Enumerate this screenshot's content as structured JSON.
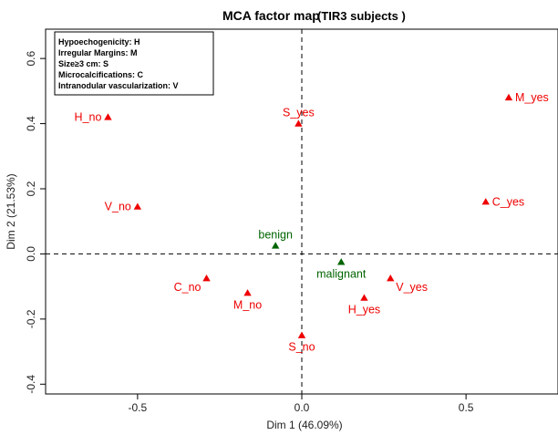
{
  "chart_data": {
    "type": "scatter",
    "title": "MCA factor map",
    "subtitle": "(TIR3 subjects )",
    "xlabel": "Dim 1 (46.09%)",
    "ylabel": "Dim 2 (21.53%)",
    "xlim": [
      -0.78,
      0.78
    ],
    "ylim": [
      -0.43,
      0.69
    ],
    "xticks": [
      -0.5,
      0.0,
      0.5
    ],
    "xtick_labels": [
      "-0.5",
      "0.0",
      "0.5"
    ],
    "yticks": [
      -0.4,
      -0.2,
      0.0,
      0.2,
      0.4,
      0.6
    ],
    "ytick_labels": [
      "-0.4",
      "-0.2",
      "0.0",
      "0.2",
      "0.4",
      "0.6"
    ],
    "grid": false,
    "reference_lines": {
      "x": 0,
      "y": 0,
      "style": "dashed"
    },
    "colors": {
      "variable": "#ee0000",
      "supplementary": "#006400"
    },
    "legend": {
      "placement": "top-left",
      "entries": [
        "Hypoechogenicity: H",
        "Irregular Margins: M",
        "Size≥3 cm: S",
        "Microcalcifications: C",
        "Intranodular vascularization: V"
      ]
    },
    "points": [
      {
        "label": "H_no",
        "x": -0.59,
        "y": 0.42,
        "color": "red",
        "anchor": "left"
      },
      {
        "label": "S_yes",
        "x": -0.01,
        "y": 0.4,
        "color": "red",
        "anchor": "above"
      },
      {
        "label": "M_yes",
        "x": 0.63,
        "y": 0.48,
        "color": "red",
        "anchor": "right"
      },
      {
        "label": "V_no",
        "x": -0.5,
        "y": 0.145,
        "color": "red",
        "anchor": "left"
      },
      {
        "label": "C_yes",
        "x": 0.56,
        "y": 0.16,
        "color": "red",
        "anchor": "right"
      },
      {
        "label": "benign",
        "x": -0.08,
        "y": 0.025,
        "color": "green",
        "anchor": "above"
      },
      {
        "label": "malignant",
        "x": 0.12,
        "y": -0.025,
        "color": "green",
        "anchor": "below"
      },
      {
        "label": "C_no",
        "x": -0.29,
        "y": -0.075,
        "color": "red",
        "anchor": "left-below"
      },
      {
        "label": "M_no",
        "x": -0.165,
        "y": -0.12,
        "color": "red",
        "anchor": "below"
      },
      {
        "label": "V_yes",
        "x": 0.27,
        "y": -0.075,
        "color": "red",
        "anchor": "right-below"
      },
      {
        "label": "H_yes",
        "x": 0.19,
        "y": -0.135,
        "color": "red",
        "anchor": "below"
      },
      {
        "label": "S_no",
        "x": 0.0,
        "y": -0.25,
        "color": "red",
        "anchor": "below"
      }
    ]
  }
}
